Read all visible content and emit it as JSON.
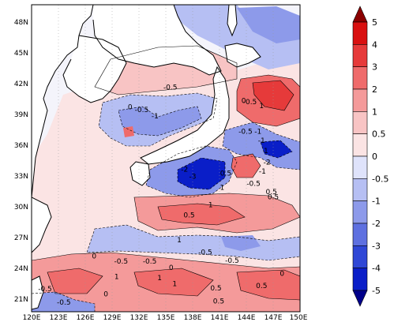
{
  "map": {
    "lat_ticks": [
      "48N",
      "45N",
      "42N",
      "39N",
      "36N",
      "33N",
      "30N",
      "27N",
      "24N",
      "21N"
    ],
    "lon_ticks": [
      "120E",
      "123E",
      "126E",
      "129E",
      "132E",
      "135E",
      "138E",
      "141E",
      "144E",
      "147E",
      "150E"
    ],
    "extent": {
      "lon_min": 120,
      "lon_max": 150,
      "lat_min": 20,
      "lat_max": 50
    }
  },
  "colorbar": {
    "levels": [
      "5",
      "4",
      "3",
      "2",
      "1",
      "0.5",
      "0",
      "-0.5",
      "-1",
      "-2",
      "-3",
      "-4",
      "-5"
    ],
    "colors": [
      "#8b0000",
      "#d91010",
      "#e63a3a",
      "#ef6b6b",
      "#f49a9a",
      "#f8c4c4",
      "#fbe4e4",
      "#dfe3fb",
      "#b6bff3",
      "#8d9aea",
      "#5e70e0",
      "#2f47d6",
      "#0a1ec8",
      "#00008b"
    ]
  },
  "contour_labels": [
    {
      "text": "-0.5",
      "lon": 135.5,
      "lat": 41.7
    },
    {
      "text": "-0.5",
      "lon": 132.3,
      "lat": 39.5
    },
    {
      "text": "0",
      "lon": 131.0,
      "lat": 39.8
    },
    {
      "text": "-1",
      "lon": 133.8,
      "lat": 38.9
    },
    {
      "text": "-0.5",
      "lon": 144.4,
      "lat": 40.3
    },
    {
      "text": "0",
      "lon": 143.7,
      "lat": 40.4
    },
    {
      "text": "1",
      "lon": 145.7,
      "lat": 39.9
    },
    {
      "text": "-0.5",
      "lon": 143.9,
      "lat": 37.4
    },
    {
      "text": "-1",
      "lon": 145.3,
      "lat": 37.4
    },
    {
      "text": "-1",
      "lon": 145.7,
      "lat": 36.5
    },
    {
      "text": "-2",
      "lon": 146.3,
      "lat": 34.4
    },
    {
      "text": "1",
      "lon": 146.2,
      "lat": 35.5
    },
    {
      "text": "-1",
      "lon": 145.8,
      "lat": 33.5
    },
    {
      "text": "-2",
      "lon": 137.1,
      "lat": 33.7
    },
    {
      "text": "-3",
      "lon": 138.0,
      "lat": 33.0
    },
    {
      "text": "0.5",
      "lon": 141.7,
      "lat": 33.3
    },
    {
      "text": "1",
      "lon": 141.3,
      "lat": 31.9
    },
    {
      "text": "-0.5",
      "lon": 144.8,
      "lat": 32.3
    },
    {
      "text": "0.5",
      "lon": 146.8,
      "lat": 31.5
    },
    {
      "text": "0.5",
      "lon": 147.0,
      "lat": 31.0
    },
    {
      "text": "0.5",
      "lon": 137.6,
      "lat": 29.2
    },
    {
      "text": "1",
      "lon": 140.0,
      "lat": 30.2
    },
    {
      "text": "1",
      "lon": 136.5,
      "lat": 26.8
    },
    {
      "text": "-0.5",
      "lon": 139.4,
      "lat": 25.6
    },
    {
      "text": "-0.5",
      "lon": 142.4,
      "lat": 24.8
    },
    {
      "text": "-0.5",
      "lon": 133.2,
      "lat": 24.7
    },
    {
      "text": "-0.5",
      "lon": 130.0,
      "lat": 24.7
    },
    {
      "text": "0",
      "lon": 135.6,
      "lat": 24.1
    },
    {
      "text": "1",
      "lon": 129.5,
      "lat": 23.2
    },
    {
      "text": "1",
      "lon": 134.3,
      "lat": 23.1
    },
    {
      "text": "1",
      "lon": 136.0,
      "lat": 22.5
    },
    {
      "text": "0.5",
      "lon": 140.6,
      "lat": 22.1
    },
    {
      "text": "0.5",
      "lon": 140.9,
      "lat": 20.8
    },
    {
      "text": "0.5",
      "lon": 145.7,
      "lat": 22.3
    },
    {
      "text": "0",
      "lon": 148.0,
      "lat": 23.5
    },
    {
      "text": "-0.5",
      "lon": 121.5,
      "lat": 22.0
    },
    {
      "text": "-0.5",
      "lon": 123.6,
      "lat": 20.7
    },
    {
      "text": "0",
      "lon": 128.3,
      "lat": 21.5
    },
    {
      "text": "0",
      "lon": 127.0,
      "lat": 25.2
    }
  ]
}
